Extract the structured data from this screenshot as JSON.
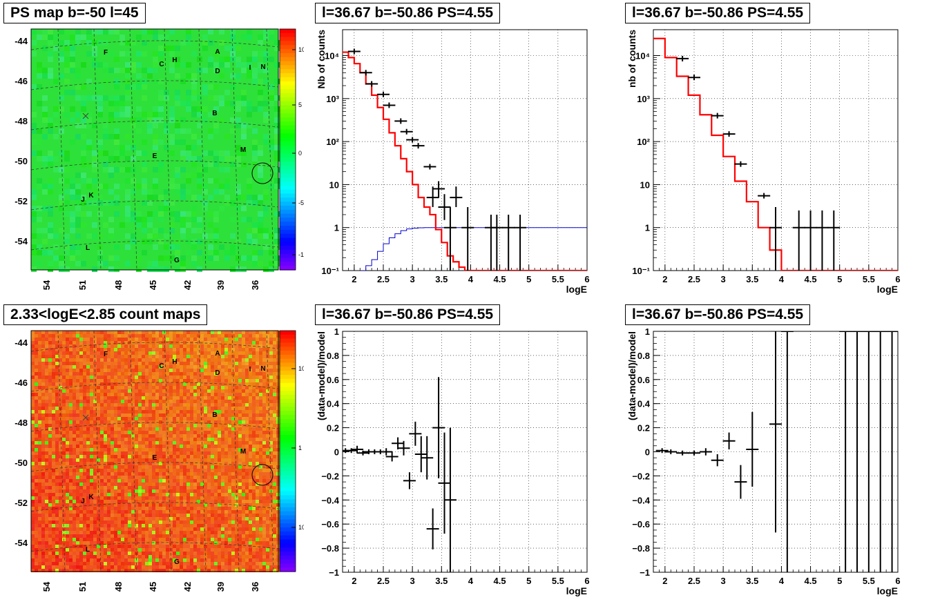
{
  "panels": {
    "map_ps_title": "PS map b=-50 l=45",
    "map_counts_title": "2.33<logE<2.85 count maps",
    "spec1_title": "l=36.67 b=-50.86 PS=4.55",
    "spec2_title": "l=36.67 b=-50.86 PS=4.55",
    "res1_title": "l=36.67 b=-50.86 PS=4.55",
    "res2_title": "l=36.67 b=-50.86 PS=4.55"
  },
  "maps": {
    "lat_ticks": [
      "-44",
      "-46",
      "-48",
      "-50",
      "-52",
      "-54"
    ],
    "lon_ticks": [
      "54",
      "51",
      "48",
      "45",
      "42",
      "39",
      "36"
    ],
    "sources": [
      {
        "label": "F"
      },
      {
        "label": "C"
      },
      {
        "label": "H"
      },
      {
        "label": "A"
      },
      {
        "label": "D"
      },
      {
        "label": "I"
      },
      {
        "label": "N"
      },
      {
        "label": "B"
      },
      {
        "label": "M"
      },
      {
        "label": "E"
      },
      {
        "label": "J"
      },
      {
        "label": "K"
      },
      {
        "label": "L"
      },
      {
        "label": "G"
      }
    ],
    "ps_colorbar_ticks": [
      "10",
      "5",
      "0",
      "-5",
      "-10"
    ],
    "counts_colorbar_ticks": [
      "10",
      "1",
      "10⁻¹"
    ],
    "colors": {
      "ps_bg": "#2ee03a",
      "counts_bg": "#f2a62c"
    }
  },
  "chart_data": [
    {
      "type": "line",
      "panel": "spectrum_1",
      "title": "l=36.67 b=-50.86 PS=4.55",
      "xlabel": "logE",
      "ylabel": "Nb of counts",
      "xlim": [
        1.8,
        6
      ],
      "ylim": [
        0.1,
        40000
      ],
      "yscale": "log",
      "x_ticks": [
        "2",
        "2.5",
        "3",
        "3.5",
        "4",
        "4.5",
        "5",
        "5.5",
        "6"
      ],
      "y_ticks": [
        "10⁻¹",
        "1",
        "10",
        "10²",
        "10³",
        "10⁴"
      ],
      "grid": true,
      "model_red": {
        "color": "#ff0000",
        "edges": [
          1.8,
          1.9,
          2.0,
          2.1,
          2.2,
          2.3,
          2.4,
          2.5,
          2.6,
          2.7,
          2.8,
          2.9,
          3.0,
          3.1,
          3.2,
          3.3,
          3.4,
          3.5,
          3.6,
          3.7,
          3.8,
          3.9,
          4.0,
          4.1,
          6.0
        ],
        "values": [
          12000,
          9000,
          6500,
          4000,
          2200,
          1200,
          620,
          330,
          160,
          80,
          40,
          20,
          10,
          5,
          3,
          2,
          0.9,
          0.45,
          0.22,
          0.16,
          0.12,
          0.1,
          0.09,
          0.09
        ]
      },
      "blue_curve": {
        "color": "#0000cc",
        "edges": [
          2.1,
          2.2,
          2.3,
          2.4,
          2.5,
          2.6,
          2.7,
          2.8,
          2.9,
          3.0,
          3.1,
          3.2,
          3.3,
          3.4,
          6.0
        ],
        "values": [
          0.1,
          0.13,
          0.18,
          0.28,
          0.42,
          0.58,
          0.72,
          0.85,
          0.93,
          0.97,
          0.99,
          1.0,
          1.0,
          1.0
        ]
      },
      "data_points": [
        {
          "x": 2.0,
          "y": 12500
        },
        {
          "x": 2.2,
          "y": 4000
        },
        {
          "x": 2.3,
          "y": 2200
        },
        {
          "x": 2.5,
          "y": 1250
        },
        {
          "x": 2.6,
          "y": 700
        },
        {
          "x": 2.8,
          "y": 300
        },
        {
          "x": 2.9,
          "y": 170
        },
        {
          "x": 3.0,
          "y": 110
        },
        {
          "x": 3.1,
          "y": 80
        },
        {
          "x": 3.3,
          "y": 26
        },
        {
          "x": 3.35,
          "y": 5,
          "err": [
            3,
            9
          ]
        },
        {
          "x": 3.45,
          "y": 8,
          "err": [
            5,
            12
          ]
        },
        {
          "x": 3.55,
          "y": 3,
          "err": [
            1.5,
            6
          ]
        },
        {
          "x": 3.65,
          "y": 1,
          "err": [
            0.1,
            3
          ]
        },
        {
          "x": 3.75,
          "y": 5,
          "err": [
            3,
            9
          ]
        },
        {
          "x": 3.95,
          "y": 1,
          "err": [
            0.1,
            3
          ]
        },
        {
          "x": 4.35,
          "y": 1,
          "err": [
            0.1,
            2
          ]
        },
        {
          "x": 4.45,
          "y": 1,
          "err": [
            0.1,
            2
          ]
        },
        {
          "x": 4.65,
          "y": 1,
          "err": [
            0.1,
            2
          ]
        },
        {
          "x": 4.85,
          "y": 1,
          "err": [
            0.1,
            2
          ]
        }
      ]
    },
    {
      "type": "line",
      "panel": "spectrum_2",
      "title": "l=36.67 b=-50.86 PS=4.55",
      "xlabel": "logE",
      "ylabel": "nb of counts",
      "xlim": [
        1.8,
        6
      ],
      "ylim": [
        0.1,
        40000
      ],
      "yscale": "log",
      "x_ticks": [
        "2",
        "2.5",
        "3",
        "3.5",
        "4",
        "4.5",
        "5",
        "5.5",
        "6"
      ],
      "y_ticks": [
        "10⁻¹",
        "1",
        "10",
        "10²",
        "10³",
        "10⁴"
      ],
      "grid": true,
      "model_red": {
        "color": "#ff0000",
        "edges": [
          1.8,
          2.0,
          2.2,
          2.4,
          2.6,
          2.8,
          3.0,
          3.2,
          3.4,
          3.6,
          3.8,
          4.0,
          4.2,
          6.0
        ],
        "values": [
          25000,
          9000,
          3300,
          1200,
          420,
          140,
          45,
          12,
          4,
          1,
          0.3,
          0.1,
          0.05
        ]
      },
      "data_points": [
        {
          "x": 2.3,
          "y": 8500
        },
        {
          "x": 2.5,
          "y": 3100
        },
        {
          "x": 2.9,
          "y": 400
        },
        {
          "x": 3.1,
          "y": 150
        },
        {
          "x": 3.3,
          "y": 30
        },
        {
          "x": 3.7,
          "y": 5.5
        },
        {
          "x": 3.9,
          "y": 1,
          "err": [
            0.1,
            3
          ]
        },
        {
          "x": 4.3,
          "y": 1,
          "err": [
            0.1,
            2.5
          ]
        },
        {
          "x": 4.5,
          "y": 1,
          "err": [
            0.1,
            2.5
          ]
        },
        {
          "x": 4.7,
          "y": 1,
          "err": [
            0.1,
            2.5
          ]
        },
        {
          "x": 4.9,
          "y": 1,
          "err": [
            0.1,
            2.5
          ]
        }
      ]
    },
    {
      "type": "scatter",
      "panel": "residual_1",
      "title": "l=36.67 b=-50.86 PS=4.55",
      "xlabel": "logE",
      "ylabel": "(data-model)/model",
      "xlim": [
        1.8,
        6
      ],
      "ylim": [
        -1,
        1
      ],
      "x_ticks": [
        "2",
        "2.5",
        "3",
        "3.5",
        "4",
        "4.5",
        "5",
        "5.5",
        "6"
      ],
      "y_ticks": [
        "−1",
        "−0.8",
        "−0.6",
        "−0.4",
        "−0.2",
        "0",
        "0.2",
        "0.4",
        "0.6",
        "0.8",
        "1"
      ],
      "grid": true,
      "data_points": [
        {
          "x": 1.85,
          "y": 0.01,
          "err": 0.02
        },
        {
          "x": 1.95,
          "y": 0.01,
          "err": 0.02
        },
        {
          "x": 2.05,
          "y": 0.02,
          "err": 0.03
        },
        {
          "x": 2.15,
          "y": -0.01,
          "err": 0.02
        },
        {
          "x": 2.25,
          "y": 0.0,
          "err": 0.02
        },
        {
          "x": 2.35,
          "y": 0.0,
          "err": 0.02
        },
        {
          "x": 2.45,
          "y": 0.0,
          "err": 0.02
        },
        {
          "x": 2.55,
          "y": 0.0,
          "err": 0.03
        },
        {
          "x": 2.65,
          "y": -0.04,
          "err": 0.04
        },
        {
          "x": 2.75,
          "y": 0.07,
          "err": 0.05
        },
        {
          "x": 2.85,
          "y": 0.03,
          "err": 0.06
        },
        {
          "x": 2.95,
          "y": -0.24,
          "err": 0.07
        },
        {
          "x": 3.05,
          "y": 0.15,
          "err": 0.1
        },
        {
          "x": 3.15,
          "y": -0.02,
          "err": 0.15
        },
        {
          "x": 3.25,
          "y": -0.05,
          "err": 0.18
        },
        {
          "x": 3.35,
          "y": -0.64,
          "err": 0.17
        },
        {
          "x": 3.45,
          "y": 0.2,
          "err": 0.42
        },
        {
          "x": 3.55,
          "y": -0.26,
          "err": 0.42
        },
        {
          "x": 3.65,
          "y": -0.4,
          "err": 0.6
        }
      ]
    },
    {
      "type": "scatter",
      "panel": "residual_2",
      "title": "l=36.67 b=-50.86 PS=4.55",
      "xlabel": "logE",
      "ylabel": "(data-model)/model",
      "xlim": [
        1.8,
        6
      ],
      "ylim": [
        -1,
        1
      ],
      "x_ticks": [
        "2",
        "2.5",
        "3",
        "3.5",
        "4",
        "4.5",
        "5",
        "5.5",
        "6"
      ],
      "y_ticks": [
        "−1",
        "−0.8",
        "−0.6",
        "−0.4",
        "−0.2",
        "0",
        "0.2",
        "0.4",
        "0.6",
        "0.8",
        "1"
      ],
      "grid": true,
      "data_points": [
        {
          "x": 1.95,
          "y": 0.01,
          "err": 0.02
        },
        {
          "x": 2.1,
          "y": 0.0,
          "err": 0.02
        },
        {
          "x": 2.3,
          "y": -0.01,
          "err": 0.02
        },
        {
          "x": 2.5,
          "y": -0.01,
          "err": 0.02
        },
        {
          "x": 2.7,
          "y": 0.0,
          "err": 0.03
        },
        {
          "x": 2.9,
          "y": -0.07,
          "err": 0.05
        },
        {
          "x": 3.1,
          "y": 0.09,
          "err": 0.07
        },
        {
          "x": 3.3,
          "y": -0.25,
          "err": 0.14
        },
        {
          "x": 3.5,
          "y": 0.02,
          "err": 0.31
        },
        {
          "x": 3.9,
          "y": 0.23,
          "err": 0.9
        },
        {
          "x": 4.1,
          "y": 1.0,
          "err": 2.0
        },
        {
          "x": 5.1,
          "y": 1.0,
          "err": 2.0
        },
        {
          "x": 5.3,
          "y": 1.0,
          "err": 2.0
        },
        {
          "x": 5.5,
          "y": 1.0,
          "err": 2.0
        },
        {
          "x": 5.7,
          "y": 1.0,
          "err": 2.0
        },
        {
          "x": 5.9,
          "y": 1.0,
          "err": 2.0
        }
      ]
    }
  ]
}
